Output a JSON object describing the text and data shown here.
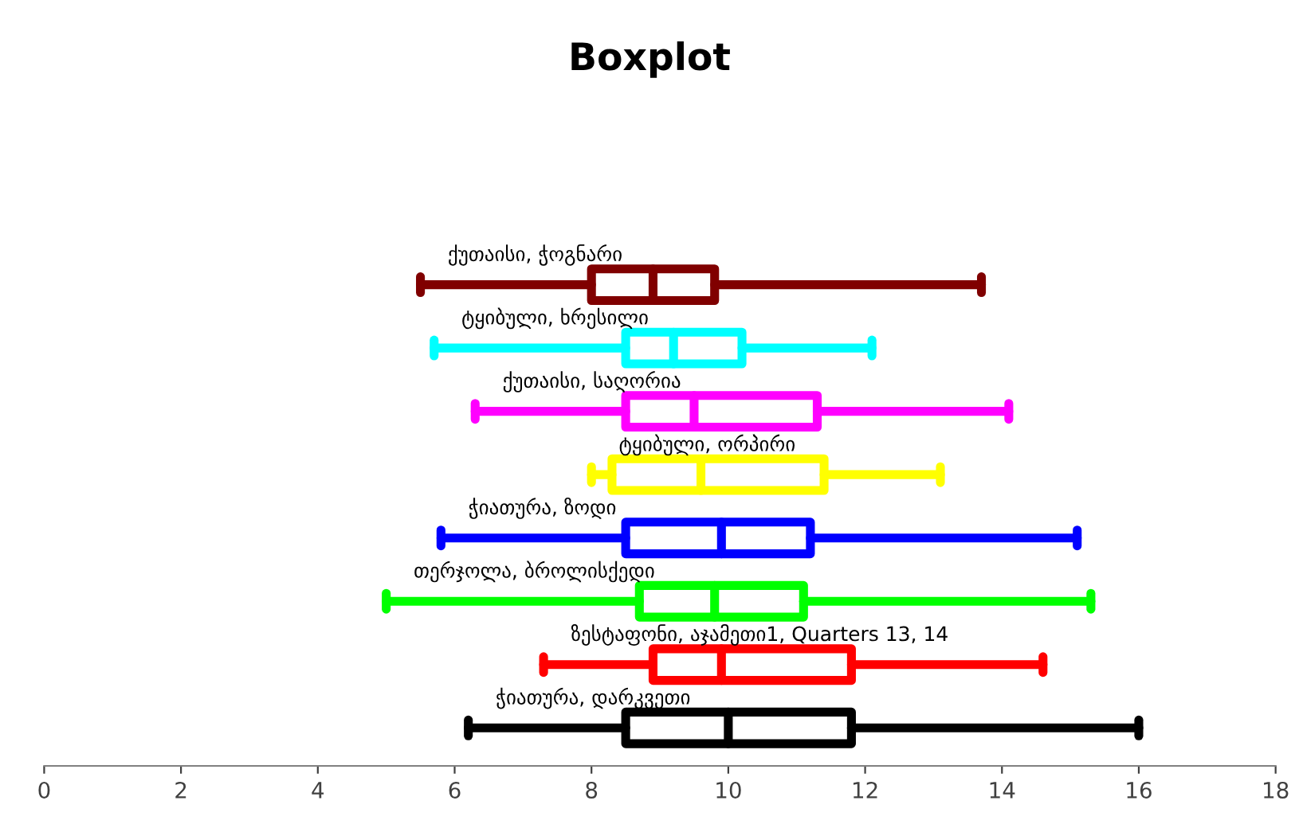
{
  "chart_data": {
    "type": "box",
    "title": "Boxplot",
    "orientation": "horizontal",
    "categories": [
      "ქუთაისი, ჭოგნარი",
      "ტყიბული, ხრესილი",
      "ქუთაისი, საღორია",
      "ტყიბული, ორპირი",
      "ჭიათურა, ზოდი",
      "თერჯოლა, ბროლისქედი",
      "ზესტაფონი, აჯამეთი1, Quarters 13, 14",
      "ჭიათურა, დარკვეთი"
    ],
    "colors": [
      "#800000",
      "#00ffff",
      "#ff00ff",
      "#ffff00",
      "#0000ff",
      "#00ff00",
      "#ff0000",
      "#000000"
    ],
    "boxes": [
      {
        "low": 5.5,
        "q1": 8.0,
        "median": 8.9,
        "q3": 9.8,
        "high": 13.7
      },
      {
        "low": 5.7,
        "q1": 8.5,
        "median": 9.2,
        "q3": 10.2,
        "high": 12.1
      },
      {
        "low": 6.3,
        "q1": 8.5,
        "median": 9.5,
        "q3": 11.3,
        "high": 14.1
      },
      {
        "low": 8.0,
        "q1": 8.3,
        "median": 9.6,
        "q3": 11.4,
        "high": 13.1
      },
      {
        "low": 5.8,
        "q1": 8.5,
        "median": 9.9,
        "q3": 11.2,
        "high": 15.1
      },
      {
        "low": 5.0,
        "q1": 8.7,
        "median": 9.8,
        "q3": 11.1,
        "high": 15.3
      },
      {
        "low": 7.3,
        "q1": 8.9,
        "median": 9.9,
        "q3": 11.8,
        "high": 14.6
      },
      {
        "low": 6.2,
        "q1": 8.5,
        "median": 10.0,
        "q3": 11.8,
        "high": 16.0
      }
    ],
    "xlim": [
      0,
      18
    ],
    "xticks": [
      0,
      2,
      4,
      6,
      8,
      10,
      12,
      14,
      16,
      18
    ],
    "tick_labels": "x",
    "grid": false,
    "legend": false
  }
}
